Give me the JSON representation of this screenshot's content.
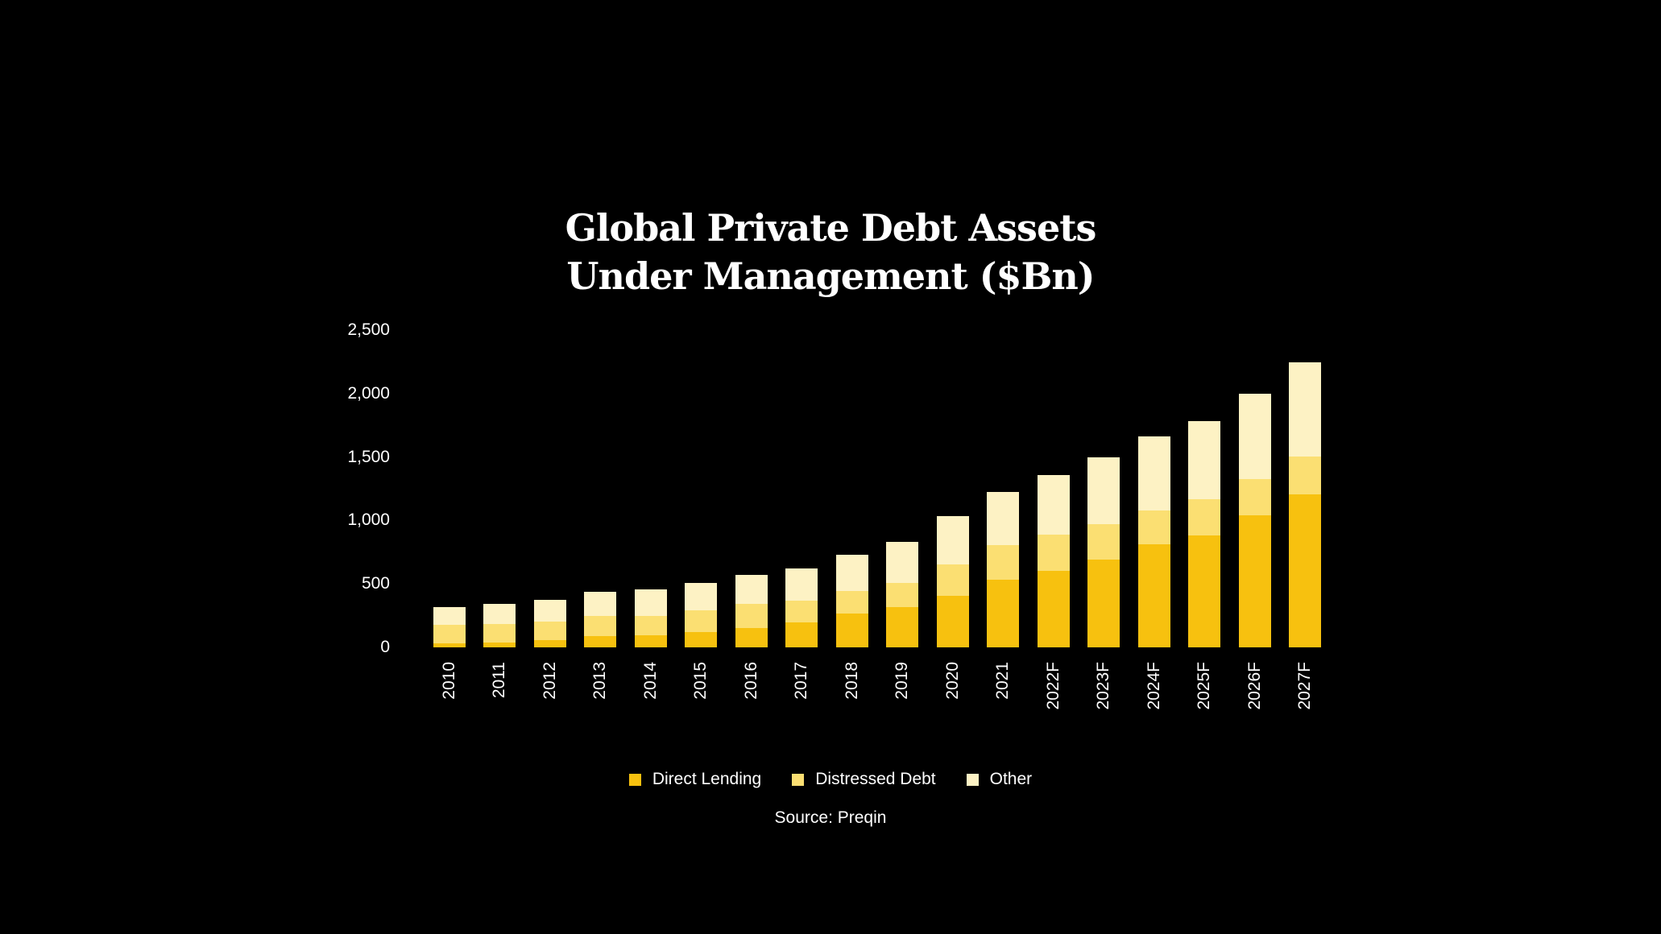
{
  "chart_data": {
    "type": "bar",
    "stacked": true,
    "title": "Global Private Debt Assets Under Management ($Bn)",
    "title_lines": [
      "Global Private Debt Assets",
      "Under Management ($Bn)"
    ],
    "xlabel": "",
    "ylabel": "",
    "ylim": [
      0,
      2500
    ],
    "yticks": [
      0,
      500,
      1000,
      1500,
      2000,
      2500
    ],
    "ytick_labels": [
      "0",
      "500",
      "1,000",
      "1,500",
      "2,000",
      "2,500"
    ],
    "categories": [
      "2010",
      "2011",
      "2012",
      "2013",
      "2014",
      "2015",
      "2016",
      "2017",
      "2018",
      "2019",
      "2020",
      "2021",
      "2022F",
      "2023F",
      "2024F",
      "2025F",
      "2026F",
      "2027F"
    ],
    "series": [
      {
        "name": "Direct Lending",
        "color": "#F7C10F",
        "values": [
          30,
          40,
          55,
          90,
          95,
          120,
          150,
          195,
          265,
          320,
          405,
          530,
          605,
          690,
          810,
          880,
          1040,
          1205
        ]
      },
      {
        "name": "Distressed Debt",
        "color": "#FBDF72",
        "values": [
          145,
          145,
          150,
          155,
          155,
          175,
          190,
          175,
          180,
          190,
          250,
          275,
          285,
          280,
          270,
          285,
          285,
          300
        ]
      },
      {
        "name": "Other",
        "color": "#FDF2C4",
        "values": [
          145,
          155,
          170,
          190,
          210,
          215,
          230,
          255,
          285,
          320,
          380,
          420,
          470,
          525,
          580,
          615,
          675,
          740
        ]
      }
    ],
    "legend_position": "bottom",
    "grid": false,
    "source": "Source: Preqin"
  },
  "legend": [
    {
      "label": "Direct Lending",
      "color": "#F7C10F"
    },
    {
      "label": "Distressed Debt",
      "color": "#FBDF72"
    },
    {
      "label": "Other",
      "color": "#FDF2C4"
    }
  ],
  "source": "Source: Preqin"
}
